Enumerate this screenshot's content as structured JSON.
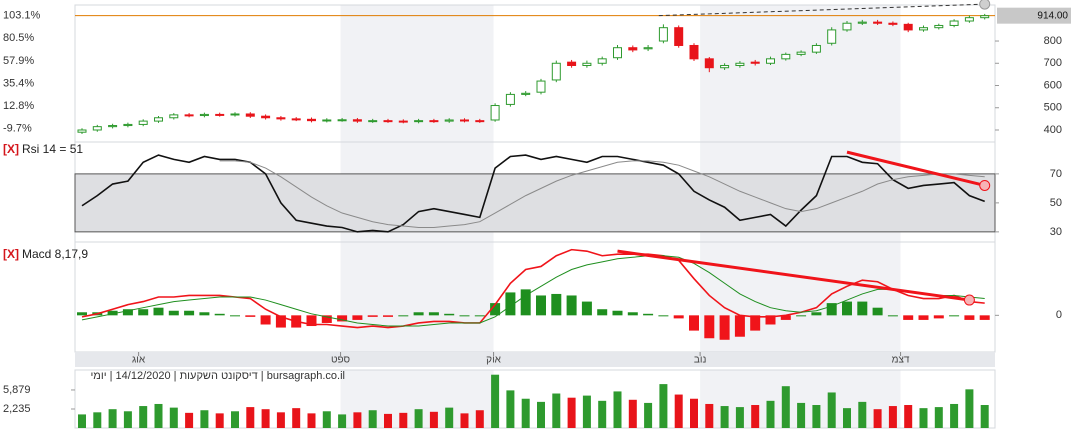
{
  "chart_data": [
    {
      "type": "candlestick",
      "open": [
        390,
        400,
        415,
        420,
        425,
        440,
        455,
        468,
        465,
        470,
        468,
        472,
        462,
        455,
        450,
        448,
        442,
        445,
        446,
        440,
        442,
        440,
        438,
        442,
        440,
        445,
        442,
        445,
        515,
        560,
        570,
        625,
        705,
        690,
        700,
        725,
        770,
        765,
        800,
        860,
        780,
        720,
        680,
        690,
        705,
        700,
        720,
        740,
        750,
        790,
        850,
        880,
        885,
        880,
        875,
        850,
        860,
        870,
        890,
        905
      ],
      "high": [
        408,
        423,
        428,
        433,
        448,
        463,
        476,
        476,
        478,
        478,
        480,
        480,
        470,
        463,
        458,
        456,
        453,
        454,
        454,
        450,
        450,
        448,
        450,
        450,
        453,
        453,
        450,
        520,
        570,
        575,
        630,
        712,
        715,
        712,
        730,
        782,
        780,
        782,
        875,
        870,
        790,
        728,
        700,
        710,
        715,
        730,
        748,
        758,
        790,
        862,
        890,
        895,
        895,
        888,
        882,
        870,
        878,
        898,
        915,
        922
      ],
      "low": [
        382,
        392,
        407,
        412,
        417,
        432,
        447,
        457,
        457,
        460,
        460,
        454,
        447,
        442,
        440,
        434,
        434,
        437,
        432,
        432,
        432,
        430,
        430,
        432,
        432,
        434,
        432,
        437,
        505,
        552,
        560,
        615,
        680,
        680,
        690,
        715,
        750,
        755,
        790,
        770,
        710,
        660,
        670,
        680,
        690,
        692,
        712,
        732,
        742,
        780,
        842,
        872,
        872,
        867,
        840,
        842,
        852,
        862,
        882,
        897
      ],
      "close": [
        400,
        415,
        420,
        425,
        440,
        455,
        468,
        465,
        470,
        468,
        472,
        462,
        455,
        450,
        448,
        442,
        445,
        446,
        440,
        442,
        440,
        438,
        442,
        440,
        445,
        442,
        440,
        510,
        560,
        565,
        620,
        700,
        690,
        700,
        720,
        770,
        760,
        770,
        860,
        780,
        720,
        680,
        690,
        700,
        700,
        720,
        740,
        750,
        780,
        850,
        880,
        885,
        880,
        875,
        850,
        860,
        870,
        890,
        905,
        914
      ],
      "up_color": "#2e9a2e",
      "down_color": "#e8141a",
      "ylim": [
        346,
        962
      ],
      "yticks": [
        400,
        500,
        600,
        700,
        800
      ],
      "yaxis": "right",
      "y2lim": [
        -23.1,
        113.8
      ],
      "y2ticks": [
        {
          "value": 103.1,
          "label": "103.1%"
        },
        {
          "value": 80.5,
          "label": "80.5%"
        },
        {
          "value": 57.9,
          "label": "57.9%"
        },
        {
          "value": 35.4,
          "label": "35.4%"
        },
        {
          "value": 12.8,
          "label": "12.8%"
        },
        {
          "value": -9.7,
          "label": "-9.7%"
        }
      ],
      "last_value": {
        "value": 914,
        "label": "914.00",
        "color": "#e07b00"
      },
      "trendlines": [
        {
          "x": [
            37.7,
            59
          ],
          "y": [
            914,
            966
          ],
          "color": "#333333",
          "style": "dashed"
        }
      ]
    },
    {
      "type": "line",
      "close_button": "[X]",
      "title": "Rsi 14 = 51",
      "series": [
        {
          "color": "#111111",
          "values": [
            48,
            55,
            63,
            65,
            78,
            83,
            80,
            78,
            82,
            80,
            80,
            78,
            70,
            50,
            38,
            36,
            34,
            33,
            30,
            31,
            30,
            35,
            44,
            46,
            44,
            42,
            40,
            74,
            82,
            83,
            80,
            82,
            80,
            78,
            82,
            82,
            80,
            78,
            76,
            70,
            58,
            52,
            47,
            38,
            40,
            42,
            34,
            45,
            55,
            82,
            82,
            78,
            77,
            66,
            60,
            62,
            63,
            64,
            55,
            51
          ]
        },
        {
          "color": "#8a8a8a",
          "values": [
            null,
            null,
            null,
            null,
            null,
            null,
            null,
            null,
            null,
            79,
            79,
            78,
            74,
            68,
            61,
            54,
            48,
            43,
            40,
            37,
            35,
            34,
            33,
            33,
            34,
            35,
            37,
            43,
            49,
            55,
            60,
            65,
            69,
            72,
            75,
            78,
            79,
            79,
            78,
            76,
            72,
            68,
            63,
            58,
            54,
            50,
            46,
            44,
            46,
            50,
            54,
            58,
            63,
            66,
            68,
            69,
            70,
            70,
            69,
            68
          ]
        }
      ],
      "band": [
        30,
        70
      ],
      "ylim": [
        23,
        92
      ],
      "yticks": [
        70,
        50,
        30
      ],
      "yaxis": "right",
      "trendlines": [
        {
          "x": [
            50,
            59
          ],
          "y": [
            85,
            62
          ],
          "color": "#f0141a",
          "style": "solid"
        }
      ]
    },
    {
      "type": "line",
      "close_button": "[X]",
      "title": "Macd 8,17,9",
      "series": [
        {
          "color": "#f0141a",
          "values": [
            -1,
            1,
            4,
            7,
            9,
            12,
            12,
            13,
            13,
            13,
            12,
            11,
            4,
            -1,
            -4,
            -6,
            -6,
            -7,
            -8,
            -7,
            -8,
            -7,
            -5,
            -4,
            -4,
            -5,
            -5,
            7,
            21,
            30,
            32,
            39,
            43,
            42,
            39,
            40,
            40,
            40,
            39,
            36,
            24,
            13,
            5,
            0,
            -1,
            -1,
            0,
            2,
            5,
            14,
            19,
            23,
            22,
            17,
            13,
            11,
            11,
            13,
            9,
            8
          ]
        },
        {
          "color": "#1f8f1f",
          "values": [
            -3,
            -1,
            1,
            3,
            5,
            7,
            9,
            10,
            11,
            12,
            12,
            12,
            10,
            7,
            4,
            1,
            -1,
            -3,
            -5,
            -6,
            -7,
            -7,
            -7,
            -6,
            -5,
            -5,
            -5,
            -1,
            6,
            13,
            19,
            25,
            30,
            33,
            35,
            37,
            38,
            39,
            39,
            38,
            34,
            28,
            21,
            14,
            9,
            5,
            3,
            2,
            3,
            6,
            10,
            14,
            17,
            17,
            16,
            14,
            13,
            13,
            12,
            11
          ]
        }
      ],
      "bars": [
        2,
        2,
        3,
        4,
        4,
        5,
        3,
        3,
        2,
        1,
        0,
        -1,
        -6,
        -8,
        -8,
        -7,
        -5,
        -4,
        -3,
        -1,
        -1,
        0,
        2,
        2,
        1,
        0,
        0,
        8,
        15,
        17,
        13,
        14,
        13,
        9,
        4,
        3,
        2,
        1,
        0,
        -2,
        -10,
        -15,
        -16,
        -14,
        -10,
        -6,
        -3,
        0,
        2,
        8,
        9,
        9,
        5,
        0,
        -3,
        -3,
        -2,
        0,
        -3,
        -3
      ],
      "bar_up_color": "#1f8f1f",
      "bar_down_color": "#f0141a",
      "ylim": [
        -24,
        48
      ],
      "yticks": [
        0
      ],
      "yaxis": "right",
      "xticks": [
        {
          "value": 3.7,
          "label": "אוג"
        },
        {
          "value": 16.9,
          "label": "ספט"
        },
        {
          "value": 26.9,
          "label": "אוק"
        },
        {
          "value": 40.4,
          "label": "נוב"
        },
        {
          "value": 53.5,
          "label": "דצמ"
        }
      ],
      "trendlines": [
        {
          "x": [
            35,
            58
          ],
          "y": [
            42,
            10
          ],
          "color": "#f0141a",
          "style": "solid"
        }
      ]
    },
    {
      "type": "bar",
      "title": "bursagraph.co.il | דיסקונט השקעות | 14/12/2020 | יומי",
      "values": [
        1200,
        1600,
        2200,
        1800,
        2800,
        3200,
        2500,
        1500,
        2000,
        1400,
        1800,
        2600,
        2200,
        1600,
        2400,
        1400,
        1800,
        1200,
        1600,
        2000,
        1300,
        1500,
        2200,
        1700,
        2500,
        1400,
        2000,
        8800,
        5800,
        4200,
        3600,
        5200,
        4400,
        4800,
        3800,
        5600,
        4000,
        3400,
        7000,
        5000,
        4200,
        3200,
        2800,
        2600,
        3000,
        3800,
        6600,
        3400,
        3000,
        5400,
        2400,
        3600,
        2200,
        2800,
        3000,
        2400,
        2600,
        3200,
        6000,
        3000
      ],
      "ylim": [
        -1400,
        9700
      ],
      "yticks": [
        {
          "value": 5879,
          "label": "5,879"
        },
        {
          "value": 2235,
          "label": "2,235"
        }
      ],
      "yaxis": "left"
    }
  ]
}
